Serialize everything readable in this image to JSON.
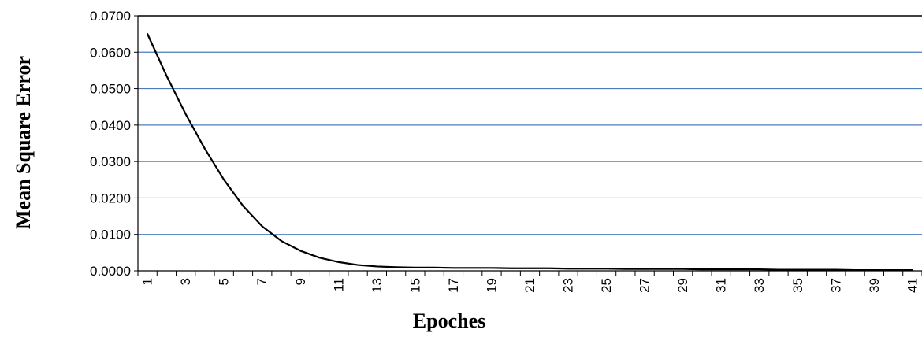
{
  "chart_data": {
    "type": "line",
    "title": "",
    "xlabel": "Epoches",
    "ylabel": "Mean Square Error",
    "x": [
      1,
      2,
      3,
      4,
      5,
      6,
      7,
      8,
      9,
      10,
      11,
      12,
      13,
      14,
      15,
      16,
      17,
      18,
      19,
      20,
      21,
      22,
      23,
      24,
      25,
      26,
      27,
      28,
      29,
      30,
      31,
      32,
      33,
      34,
      35,
      36,
      37,
      38,
      39,
      40,
      41
    ],
    "x_tick_labels": [
      "1",
      "3",
      "5",
      "7",
      "9",
      "11",
      "13",
      "15",
      "17",
      "19",
      "21",
      "23",
      "25",
      "27",
      "29",
      "31",
      "33",
      "35",
      "37",
      "39",
      "41"
    ],
    "y_tick_labels": [
      "0.0000",
      "0.0100",
      "0.0200",
      "0.0300",
      "0.0400",
      "0.0500",
      "0.0600",
      "0.0700"
    ],
    "ylim": [
      0,
      0.07
    ],
    "grid": true,
    "colors": {
      "line": "#000000",
      "grid": "#4a7ebb",
      "axis": "#000000"
    },
    "series": [
      {
        "values": [
          0.065,
          0.0535,
          0.043,
          0.0335,
          0.025,
          0.0178,
          0.0122,
          0.0082,
          0.0055,
          0.0036,
          0.0024,
          0.0016,
          0.0012,
          0.001,
          0.0009,
          0.0009,
          0.0008,
          0.0008,
          0.0008,
          0.0007,
          0.0007,
          0.0007,
          0.0006,
          0.0006,
          0.0006,
          0.0005,
          0.0005,
          0.0005,
          0.0005,
          0.0004,
          0.0004,
          0.0004,
          0.0004,
          0.0003,
          0.0003,
          0.0003,
          0.0003,
          0.0002,
          0.0002,
          0.0002,
          0.0002
        ]
      }
    ]
  }
}
